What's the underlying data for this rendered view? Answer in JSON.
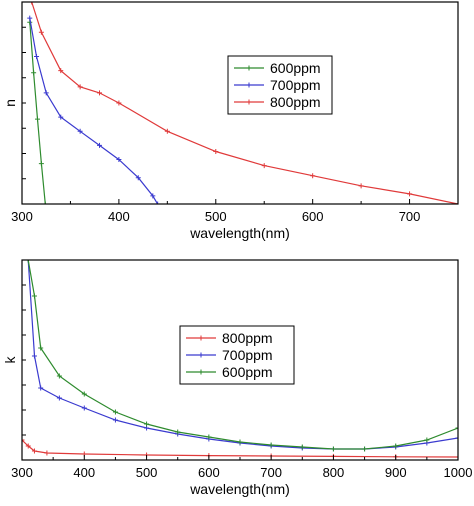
{
  "chart_data": [
    {
      "type": "line",
      "title": "",
      "xlabel": "wavelength(nm)",
      "ylabel": "n",
      "xlim": [
        300,
        750
      ],
      "ylim": [
        0,
        1
      ],
      "x_ticks": [
        300,
        400,
        500,
        600,
        700
      ],
      "y_ticks_labeled": false,
      "grid": false,
      "legend_position": "top-center",
      "legend": [
        "600ppm",
        "700ppm",
        "800ppm"
      ],
      "series": [
        {
          "name": "600ppm",
          "color": "#2e8b2e",
          "marker": "cross",
          "x": [
            308,
            312,
            316,
            320,
            324
          ],
          "y": [
            0.9,
            0.65,
            0.42,
            0.2,
            0.0
          ]
        },
        {
          "name": "700ppm",
          "color": "#3a3acf",
          "marker": "cross",
          "x": [
            308,
            315,
            325,
            340,
            360,
            380,
            400,
            420,
            435,
            440
          ],
          "y": [
            0.92,
            0.73,
            0.55,
            0.43,
            0.36,
            0.29,
            0.22,
            0.13,
            0.04,
            0.0
          ]
        },
        {
          "name": "800ppm",
          "color": "#e03a3a",
          "marker": "cross",
          "x": [
            310,
            320,
            340,
            360,
            380,
            400,
            450,
            500,
            550,
            600,
            650,
            700,
            750
          ],
          "y": [
            1.0,
            0.85,
            0.66,
            0.58,
            0.55,
            0.5,
            0.36,
            0.26,
            0.19,
            0.14,
            0.09,
            0.05,
            0.0
          ]
        }
      ]
    },
    {
      "type": "line",
      "title": "",
      "xlabel": "wavelength(nm)",
      "ylabel": "k",
      "xlim": [
        300,
        1000
      ],
      "ylim": [
        0,
        1
      ],
      "x_ticks": [
        300,
        400,
        500,
        600,
        700,
        800,
        900,
        1000
      ],
      "x_tick_labels": [
        "300",
        "400",
        "500",
        "600",
        "700",
        "800",
        "900",
        "1000"
      ],
      "y_ticks_labeled": false,
      "grid": false,
      "legend_position": "center",
      "legend": [
        "800ppm",
        "700ppm",
        "600ppm"
      ],
      "series": [
        {
          "name": "800ppm",
          "color": "#e03a3a",
          "marker": "cross",
          "x": [
            300,
            310,
            320,
            340,
            400,
            500,
            600,
            700,
            800,
            900,
            1000
          ],
          "y": [
            0.1,
            0.07,
            0.045,
            0.035,
            0.03,
            0.025,
            0.022,
            0.02,
            0.018,
            0.016,
            0.015
          ]
        },
        {
          "name": "700ppm",
          "color": "#3a3acf",
          "marker": "cross",
          "x": [
            310,
            320,
            330,
            360,
            400,
            450,
            500,
            550,
            600,
            650,
            700,
            750,
            800,
            850,
            900,
            950,
            1000
          ],
          "y": [
            1.0,
            0.52,
            0.36,
            0.31,
            0.26,
            0.2,
            0.16,
            0.13,
            0.105,
            0.085,
            0.07,
            0.06,
            0.055,
            0.055,
            0.065,
            0.085,
            0.11
          ]
        },
        {
          "name": "600ppm",
          "color": "#2e8b2e",
          "marker": "cross",
          "x": [
            310,
            320,
            330,
            360,
            400,
            450,
            500,
            550,
            600,
            650,
            700,
            750,
            800,
            850,
            900,
            950,
            1000
          ],
          "y": [
            1.0,
            0.82,
            0.56,
            0.42,
            0.33,
            0.24,
            0.18,
            0.14,
            0.115,
            0.09,
            0.075,
            0.065,
            0.055,
            0.055,
            0.07,
            0.1,
            0.16
          ]
        }
      ]
    }
  ]
}
